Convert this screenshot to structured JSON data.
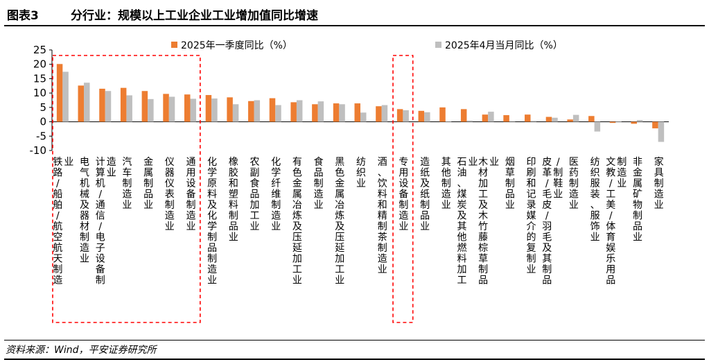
{
  "figure": {
    "number": "图表3",
    "title": "分行业：规模以上工业企业工业增加值同比增速",
    "source": "资料来源：Wind，平安证券研究所"
  },
  "colors": {
    "series1": "#ED7D31",
    "series2": "#BFBFBF",
    "highlight": "#FF0000"
  },
  "chart_data": {
    "type": "bar",
    "legend_position": "top",
    "grid": false,
    "ylim": [
      -10,
      25
    ],
    "yticks": [
      -10,
      -5,
      0,
      5,
      10,
      15,
      20,
      25
    ],
    "categories": [
      "铁路/船舶/航空航天制造业",
      "电气机械及器材制造业",
      "计算机/通信/电子设备制造业",
      "汽车制造业",
      "金属制品业",
      "仪器仪表制造业",
      "通用设备制造业",
      "化学原料及化学制品制造业",
      "橡胶和塑料制品业",
      "农副食品加工业",
      "化学纤维制造业",
      "有色金属冶炼及压延加工业",
      "食品制造业",
      "黑色金属冶炼及压延加工业",
      "纺织业",
      "酒、饮料和精制茶制造业",
      "专用设备制造业",
      "造纸及纸制品业",
      "其他制造业",
      "石油、煤炭及其他燃料加工业",
      "木材加工及木竹藤棕草制品业",
      "烟草制品业",
      "印刷和记录媒介的复制业",
      "皮革/毛皮/羽毛及其制品/制鞋业",
      "医药制造业",
      "纺织服装、服饰业",
      "文教/工美/体育娱乐用品制造业",
      "非金属矿物制品业",
      "家具制造业"
    ],
    "series": [
      {
        "name": "2025年一季度同比（%）",
        "values": [
          20.1,
          12.6,
          11.5,
          11.8,
          10.7,
          9.7,
          9.5,
          9.3,
          8.5,
          7.2,
          8.2,
          6.8,
          6.1,
          6.4,
          6.4,
          5.4,
          4.4,
          3.8,
          5.0,
          4.4,
          2.5,
          2.3,
          2.5,
          1.7,
          0.8,
          2.0,
          -0.4,
          -0.7,
          -2.3
        ]
      },
      {
        "name": "2025年4月当月同比（%）",
        "values": [
          17.4,
          13.6,
          10.7,
          9.2,
          7.9,
          8.7,
          8.0,
          8.1,
          6.1,
          7.5,
          5.8,
          7.5,
          7.1,
          6.1,
          3.2,
          5.8,
          4.0,
          3.3,
          0.1,
          0.4,
          3.5,
          0.2,
          0.3,
          1.4,
          2.4,
          -3.4,
          0.1,
          0.6,
          -7.0
        ]
      }
    ],
    "highlight_groups": [
      [
        0,
        6
      ],
      [
        16,
        16
      ]
    ]
  }
}
